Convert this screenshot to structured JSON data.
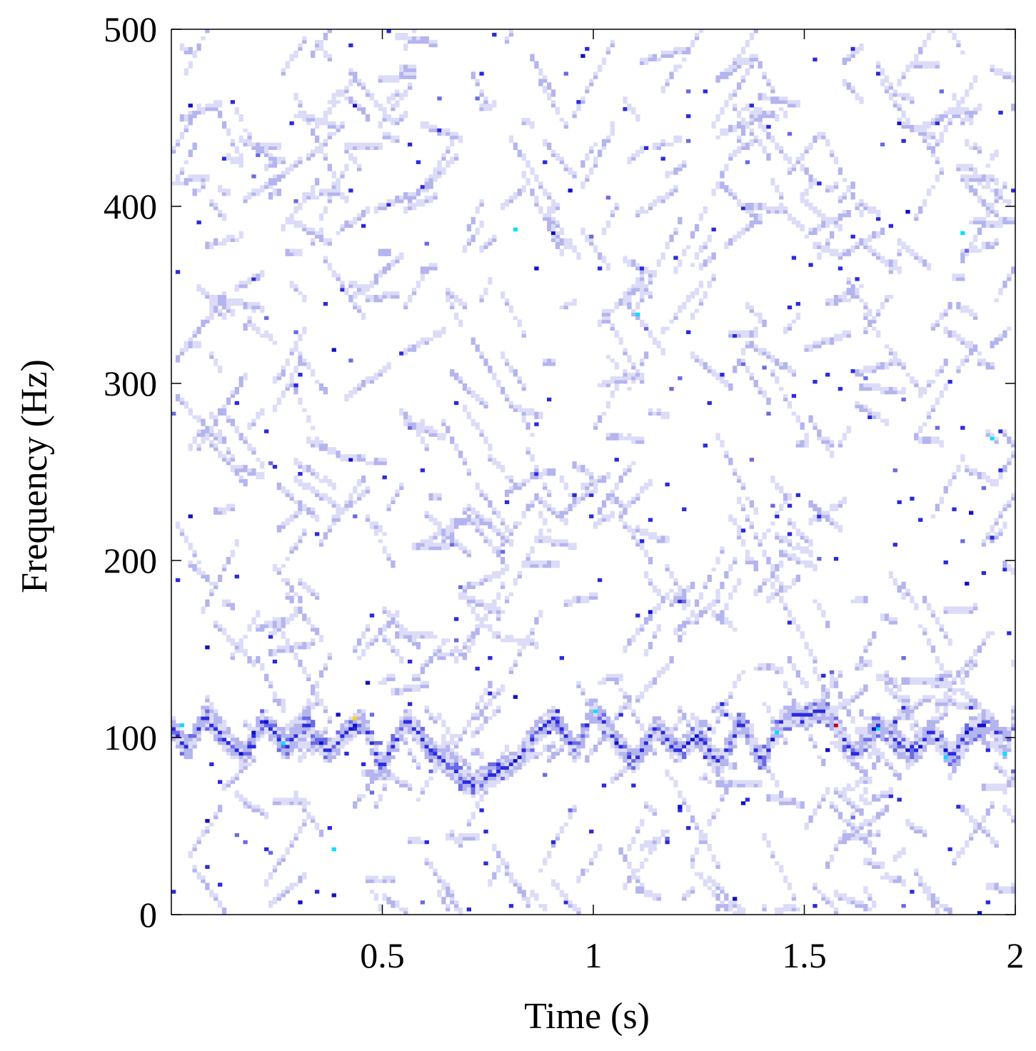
{
  "chart_data": {
    "type": "heatmap",
    "title": "",
    "xlabel": "Time (s)",
    "ylabel": "Frequency (Hz)",
    "xlim": [
      0,
      2
    ],
    "ylim": [
      0,
      500
    ],
    "x_ticks": [
      {
        "value": 0.5,
        "label": "0.5"
      },
      {
        "value": 1,
        "label": "1"
      },
      {
        "value": 1.5,
        "label": "1.5"
      },
      {
        "value": 2,
        "label": "2"
      }
    ],
    "y_ticks": [
      {
        "value": 0,
        "label": "0"
      },
      {
        "value": 100,
        "label": "100"
      },
      {
        "value": 200,
        "label": "200"
      },
      {
        "value": 300,
        "label": "300"
      },
      {
        "value": 400,
        "label": "400"
      },
      {
        "value": 500,
        "label": "500"
      }
    ],
    "grid": false,
    "colormap": [
      "#ffffff",
      "#dcdcf8",
      "#b4b4ee",
      "#6a6ae6",
      "#2a2ae0",
      "#1010c8",
      "#00e0ff",
      "#ffd000",
      "#c00000"
    ],
    "dominant_band": {
      "name": "",
      "points": [
        [
          0.0,
          105
        ],
        [
          0.04,
          92
        ],
        [
          0.08,
          112
        ],
        [
          0.12,
          100
        ],
        [
          0.17,
          88
        ],
        [
          0.22,
          110
        ],
        [
          0.27,
          93
        ],
        [
          0.32,
          108
        ],
        [
          0.37,
          90
        ],
        [
          0.42,
          103
        ],
        [
          0.45,
          110
        ],
        [
          0.5,
          82
        ],
        [
          0.56,
          110
        ],
        [
          0.61,
          92
        ],
        [
          0.66,
          82
        ],
        [
          0.71,
          72
        ],
        [
          0.76,
          78
        ],
        [
          0.81,
          84
        ],
        [
          0.86,
          100
        ],
        [
          0.91,
          110
        ],
        [
          0.96,
          90
        ],
        [
          1.0,
          117
        ],
        [
          1.05,
          97
        ],
        [
          1.1,
          85
        ],
        [
          1.15,
          106
        ],
        [
          1.2,
          90
        ],
        [
          1.25,
          100
        ],
        [
          1.3,
          84
        ],
        [
          1.35,
          108
        ],
        [
          1.4,
          85
        ],
        [
          1.45,
          110
        ],
        [
          1.5,
          112
        ],
        [
          1.55,
          114
        ],
        [
          1.58,
          105
        ],
        [
          1.62,
          88
        ],
        [
          1.67,
          106
        ],
        [
          1.71,
          100
        ],
        [
          1.76,
          90
        ],
        [
          1.8,
          103
        ],
        [
          1.85,
          88
        ],
        [
          1.89,
          103
        ],
        [
          1.94,
          108
        ],
        [
          1.98,
          92
        ],
        [
          2.0,
          115
        ]
      ],
      "peak_cell": {
        "t": 1.575,
        "f": 106,
        "level": 1.0
      }
    },
    "highlight_points": [
      {
        "t": 0.43,
        "f": 110,
        "level": 0.85
      },
      {
        "t": 0.26,
        "f": 97,
        "level": 0.7
      },
      {
        "t": 0.38,
        "f": 37,
        "level": 0.7
      },
      {
        "t": 0.81,
        "f": 386,
        "level": 0.65
      },
      {
        "t": 1.1,
        "f": 338,
        "level": 0.7
      },
      {
        "t": 1.88,
        "f": 385,
        "level": 0.7
      },
      {
        "t": 1.94,
        "f": 268,
        "level": 0.65
      },
      {
        "t": 1.43,
        "f": 102,
        "level": 0.7
      },
      {
        "t": 1.67,
        "f": 105,
        "level": 0.65
      },
      {
        "t": 1.0,
        "f": 115,
        "level": 0.65
      },
      {
        "t": 0.02,
        "f": 106,
        "level": 0.65
      },
      {
        "t": 1.97,
        "f": 91,
        "level": 0.6
      },
      {
        "t": 1.83,
        "f": 88,
        "level": 0.6
      }
    ],
    "notes": "Sparse spectrogram of mostly faint blue cells with a dense oscillating band near 100 Hz and one dark red peak near 1.57 s / 106 Hz."
  }
}
